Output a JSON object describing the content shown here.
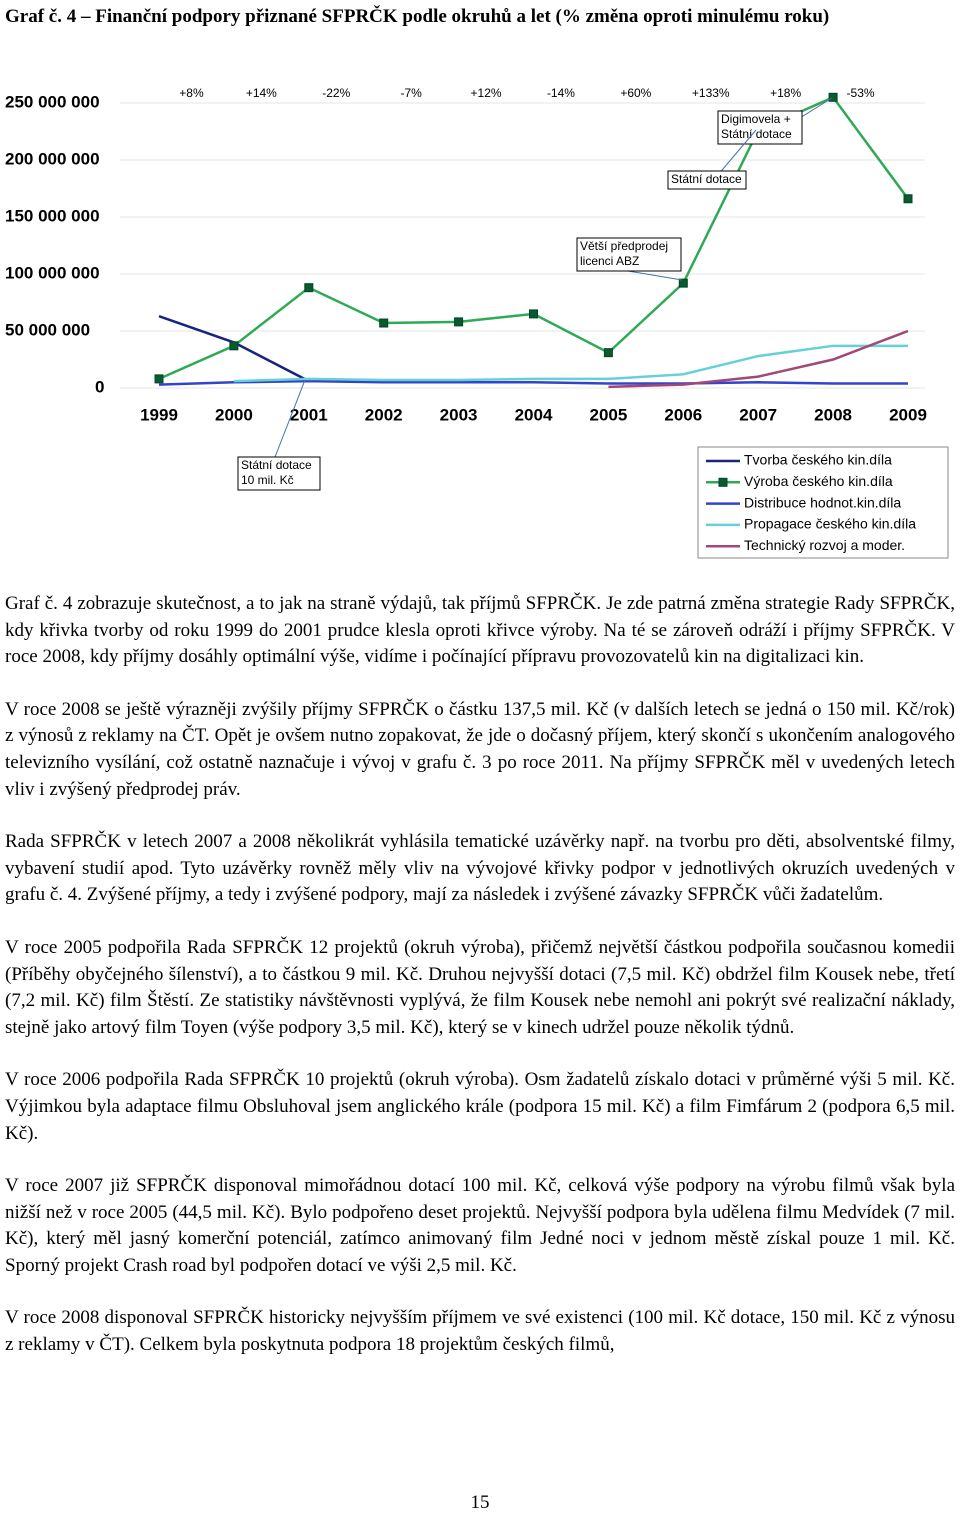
{
  "header": {
    "title": "Graf č. 4 – Finanční podpory přiznané SFPRČK podle okruhů a let (% změna oproti minulému roku)"
  },
  "chart_data": {
    "type": "line",
    "categories": [
      "1999",
      "2000",
      "2001",
      "2002",
      "2003",
      "2004",
      "2005",
      "2006",
      "2007",
      "2008",
      "2009"
    ],
    "ylim": [
      0,
      250000000
    ],
    "yticks": [
      0,
      {
        "value": 50000000,
        "label": "50 000 000"
      },
      {
        "value": 100000000,
        "label": "100 000 000"
      },
      {
        "value": 150000000,
        "label": "150 000 000"
      },
      {
        "value": 200000000,
        "label": "200 000 000"
      },
      {
        "value": 250000000,
        "label": "250 000 000"
      }
    ],
    "grid": true,
    "legend": "bottom-right",
    "change_labels": [
      "+8%",
      "+14%",
      "-22%",
      "-7%",
      "+12%",
      "-14%",
      "+60%",
      "+133%",
      "+18%",
      "-53%"
    ],
    "series": [
      {
        "name": "Tvorba českého kin.díla",
        "color": "#1a237e",
        "marker": false,
        "values": [
          63000000,
          40000000,
          6000000,
          null,
          null,
          null,
          null,
          null,
          null,
          null,
          null
        ]
      },
      {
        "name": "Výroba českého kin.díla",
        "color": "#2eaa55",
        "marker": true,
        "values": [
          8000000,
          37000000,
          88000000,
          57000000,
          58000000,
          65000000,
          31000000,
          92000000,
          226000000,
          255000000,
          166000000
        ]
      },
      {
        "name": "Distribuce hodnot.kin.díla",
        "color": "#3344cc",
        "marker": false,
        "values": [
          3000000,
          5000000,
          6000000,
          5000000,
          5000000,
          5000000,
          4000000,
          4000000,
          5000000,
          4000000,
          4000000
        ]
      },
      {
        "name": "Propagace českého kin.díla",
        "color": "#66d0d8",
        "marker": false,
        "values": [
          null,
          6000000,
          8000000,
          7000000,
          7000000,
          8000000,
          8000000,
          12000000,
          28000000,
          37000000,
          37000000
        ]
      },
      {
        "name": "Technický rozvoj a moder.",
        "color": "#a04878",
        "marker": false,
        "values": [
          null,
          null,
          null,
          null,
          null,
          null,
          1000000,
          3000000,
          10000000,
          25000000,
          50000000
        ]
      }
    ],
    "annotations": [
      {
        "lines": [
          "Digimovela +",
          "Státní dotace"
        ]
      },
      {
        "lines": [
          "Státní dotace"
        ]
      },
      {
        "lines": [
          "Větší předprodej",
          "licenci ABZ"
        ]
      },
      {
        "lines": [
          "Státní dotace",
          "10 mil. Kč"
        ]
      }
    ]
  },
  "paragraphs": [
    "Graf č. 4 zobrazuje skutečnost, a to jak na straně výdajů, tak příjmů SFPRČK. Je zde patrná změna strategie Rady SFPRČK, kdy křivka tvorby od roku 1999 do 2001 prudce klesla oproti křivce výroby. Na té se zároveň odráží i příjmy SFPRČK. V roce 2008, kdy příjmy dosáhly optimální výše, vidíme i počínající přípravu provozovatelů kin na digitalizaci kin.",
    "V roce 2008 se ještě výrazněji zvýšily příjmy SFPRČK o částku 137,5 mil. Kč (v dalších letech se jedná o 150 mil. Kč/rok) z výnosů z reklamy na ČT. Opět je ovšem nutno zopakovat, že jde o dočasný příjem, který skončí s ukončením analogového televizního vysílání, což ostatně naznačuje i vývoj v grafu č. 3 po roce 2011. Na příjmy SFPRČK měl v uvedených letech vliv i zvýšený předprodej práv.",
    "Rada SFPRČK v letech 2007 a 2008 několikrát vyhlásila tematické uzávěrky např. na tvorbu pro děti, absolventské filmy, vybavení studií apod. Tyto uzávěrky rovněž měly vliv na vývojové křivky podpor v jednotlivých okruzích uvedených v grafu č. 4. Zvýšené příjmy, a tedy i zvýšené podpory, mají za následek i zvýšené závazky SFPRČK vůči žadatelům.",
    "V roce 2005 podpořila Rada SFPRČK 12 projektů (okruh výroba), přičemž největší částkou podpořila současnou komedii (Příběhy obyčejného šílenství), a to částkou 9 mil. Kč. Druhou nejvyšší dotaci (7,5 mil. Kč) obdržel film Kousek nebe, třetí (7,2 mil. Kč) film Štěstí. Ze statistiky návštěvnosti vyplývá, že film Kousek nebe nemohl ani pokrýt své realizační náklady, stejně jako artový film Toyen (výše podpory 3,5 mil. Kč), který se v kinech udržel pouze několik týdnů.",
    "V roce 2006 podpořila Rada SFPRČK 10 projektů (okruh výroba). Osm žadatelů získalo dotaci v průměrné výši 5 mil. Kč. Výjimkou byla adaptace filmu Obsluhoval jsem anglického krále (podpora 15 mil. Kč) a film Fimfárum 2 (podpora 6,5 mil. Kč).",
    "V roce 2007 již SFPRČK disponoval mimořádnou dotací 100 mil. Kč, celková výše podpory na výrobu filmů však byla nižší než v roce 2005 (44,5 mil. Kč). Bylo podpořeno deset projektů. Nejvyšší podpora byla udělena filmu Medvídek (7 mil. Kč), který měl jasný komerční potenciál, zatímco animovaný film Jedné noci v jednom městě získal pouze 1 mil. Kč. Sporný projekt Crash road byl podpořen dotací ve výši 2,5 mil. Kč.",
    "V roce 2008 disponoval SFPRČK historicky nejvyšším příjmem ve své existenci (100 mil. Kč dotace, 150 mil. Kč z výnosu z reklamy v ČT). Celkem byla poskytnuta podpora 18 projektům českých filmů,"
  ],
  "footer": {
    "page_number": "15"
  }
}
